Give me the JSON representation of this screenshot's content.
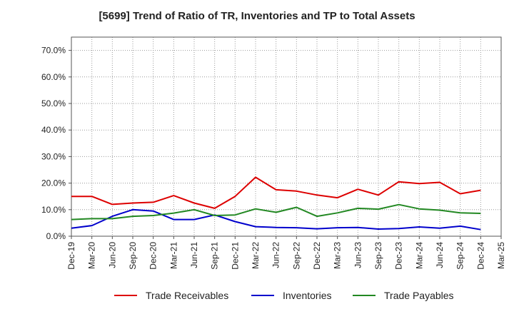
{
  "chart_data": {
    "type": "line",
    "title": "[5699]  Trend of Ratio of TR, Inventories and TP to Total Assets",
    "categories": [
      "Dec-19",
      "Mar-20",
      "Jun-20",
      "Sep-20",
      "Dec-20",
      "Mar-21",
      "Jun-21",
      "Sep-21",
      "Dec-21",
      "Mar-22",
      "Jun-22",
      "Sep-22",
      "Dec-22",
      "Mar-23",
      "Jun-23",
      "Sep-23",
      "Dec-23",
      "Mar-24",
      "Jun-24",
      "Sep-24",
      "Dec-24",
      "Mar-25"
    ],
    "series": [
      {
        "name": "Trade Receivables",
        "color": "#dd0000",
        "values": [
          15.0,
          15.0,
          12.0,
          12.5,
          12.8,
          15.3,
          12.5,
          10.5,
          15.0,
          22.2,
          17.5,
          17.0,
          15.5,
          14.5,
          17.7,
          15.5,
          20.5,
          19.8,
          20.3,
          16.0,
          17.3,
          null
        ]
      },
      {
        "name": "Inventories",
        "color": "#0000cc",
        "values": [
          3.0,
          4.0,
          7.5,
          10.0,
          9.5,
          6.3,
          6.3,
          8.0,
          5.5,
          3.6,
          3.3,
          3.2,
          2.8,
          3.2,
          3.3,
          2.7,
          2.9,
          3.5,
          3.0,
          3.8,
          2.5,
          null
        ]
      },
      {
        "name": "Trade Payables",
        "color": "#228822",
        "values": [
          6.3,
          6.6,
          6.6,
          7.5,
          7.8,
          8.7,
          10.0,
          7.8,
          8.0,
          10.3,
          9.0,
          10.9,
          7.5,
          8.8,
          10.5,
          10.2,
          11.9,
          10.3,
          9.8,
          8.8,
          8.6,
          null
        ]
      }
    ],
    "y_ticks": [
      "0.0%",
      "10.0%",
      "20.0%",
      "30.0%",
      "40.0%",
      "50.0%",
      "60.0%",
      "70.0%"
    ],
    "ylim": [
      0,
      75
    ],
    "grid": true,
    "legend_position": "bottom"
  }
}
